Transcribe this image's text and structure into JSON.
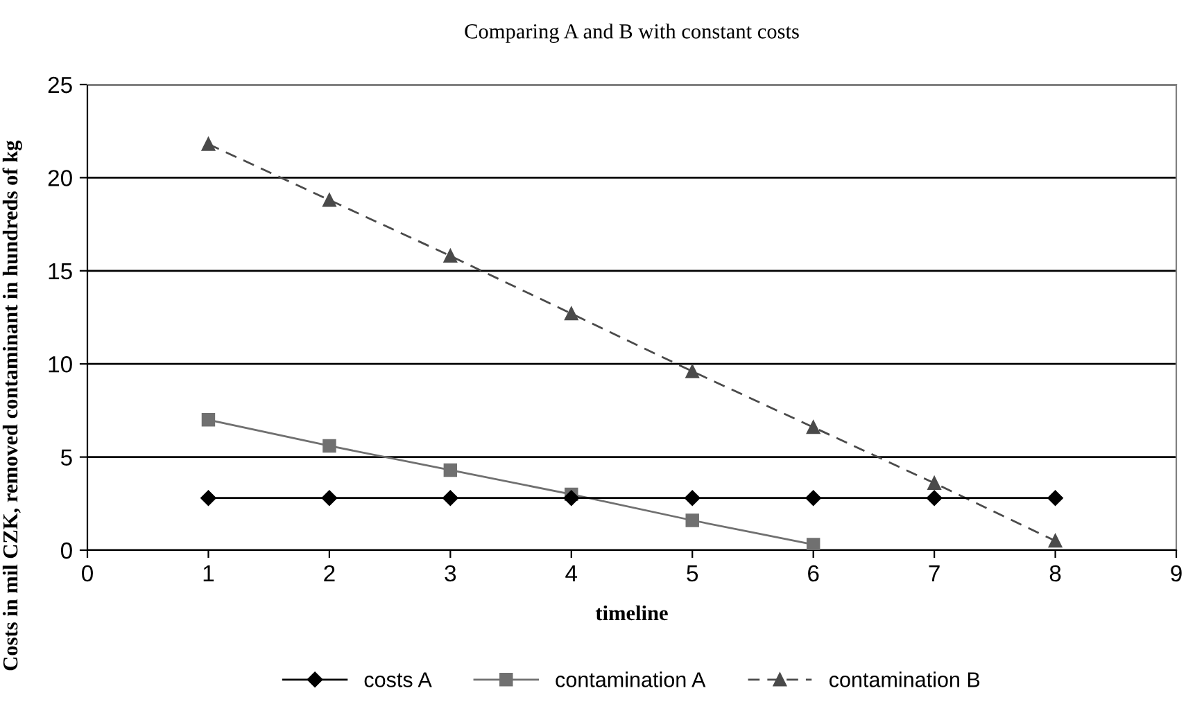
{
  "chart_data": {
    "type": "line",
    "title": "Comparing A and B with constant costs",
    "xlabel": "timeline",
    "ylabel": "Costs in mil CZK, removed contaminant in hundreds of kg",
    "xlim": [
      0,
      9
    ],
    "xticks": [
      0,
      1,
      2,
      3,
      4,
      5,
      6,
      7,
      8,
      9
    ],
    "ylim": [
      0,
      25
    ],
    "yticks": [
      0,
      5,
      10,
      15,
      20,
      25
    ],
    "grid": "y",
    "legend": "bottom",
    "series": [
      {
        "name": "costs A",
        "color": "#000000",
        "marker": "diamond",
        "line_style": "solid",
        "x": [
          1,
          2,
          3,
          4,
          5,
          6,
          7,
          8
        ],
        "values": [
          2.8,
          2.8,
          2.8,
          2.8,
          2.8,
          2.8,
          2.8,
          2.8
        ]
      },
      {
        "name": "contamination A",
        "color": "#707070",
        "marker": "square",
        "line_style": "solid",
        "x": [
          1,
          2,
          3,
          4,
          5,
          6
        ],
        "values": [
          7.0,
          5.6,
          4.3,
          3.0,
          1.6,
          0.3
        ]
      },
      {
        "name": "contamination B",
        "color": "#4a4a4a",
        "marker": "triangle",
        "line_style": "dashed",
        "x": [
          1,
          2,
          3,
          4,
          5,
          6,
          7,
          8
        ],
        "values": [
          21.8,
          18.8,
          15.8,
          12.7,
          9.6,
          6.6,
          3.6,
          0.5
        ]
      }
    ]
  }
}
